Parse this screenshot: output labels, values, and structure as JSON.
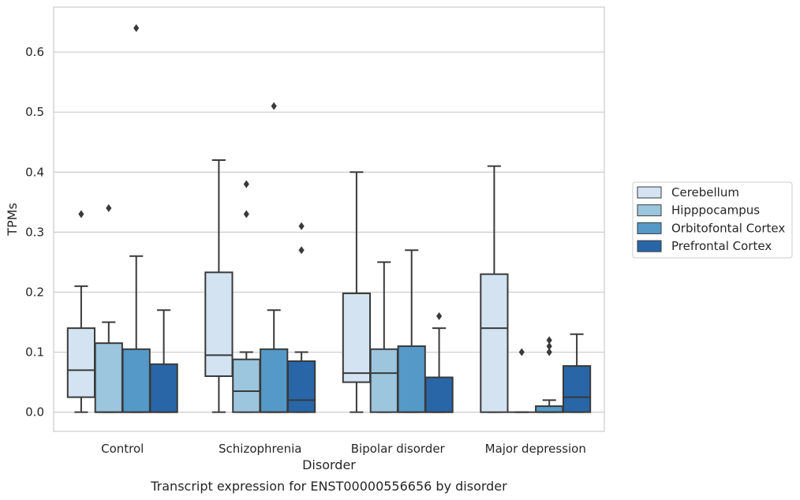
{
  "caption": "Transcript expression for ENST00000556656 by disorder",
  "colors": {
    "box_edge": "#3a3a3a",
    "grid": "#cccccc",
    "frame": "#cccccc",
    "series": [
      "#d3e3f2",
      "#9cc5de",
      "#5599c8",
      "#2866a8"
    ]
  },
  "chart_data": {
    "type": "box",
    "title": "",
    "xlabel": "Disorder",
    "ylabel": "TPMs",
    "ylim": [
      -0.032,
      0.675
    ],
    "yticks": [
      0.0,
      0.1,
      0.2,
      0.3,
      0.4,
      0.5,
      0.6
    ],
    "ytick_labels": [
      "0.0",
      "0.1",
      "0.2",
      "0.3",
      "0.4",
      "0.5",
      "0.6"
    ],
    "grid": "horizontal",
    "legend_position": "right",
    "categories": [
      "Control",
      "Schizophrenia",
      "Bipolar disorder",
      "Major depression"
    ],
    "series": [
      {
        "name": "Cerebellum",
        "boxes": [
          {
            "whisker_low": 0.0,
            "q1": 0.025,
            "median": 0.07,
            "q3": 0.14,
            "whisker_high": 0.21,
            "outliers": [
              0.33
            ]
          },
          {
            "whisker_low": 0.0,
            "q1": 0.06,
            "median": 0.095,
            "q3": 0.233,
            "whisker_high": 0.42,
            "outliers": []
          },
          {
            "whisker_low": 0.0,
            "q1": 0.05,
            "median": 0.065,
            "q3": 0.198,
            "whisker_high": 0.4,
            "outliers": []
          },
          {
            "whisker_low": 0.0,
            "q1": 0.0,
            "median": 0.14,
            "q3": 0.23,
            "whisker_high": 0.41,
            "outliers": []
          }
        ]
      },
      {
        "name": "Hipppocampus",
        "boxes": [
          {
            "whisker_low": 0.0,
            "q1": 0.0,
            "median": 0.0,
            "q3": 0.115,
            "whisker_high": 0.15,
            "outliers": [
              0.34
            ]
          },
          {
            "whisker_low": 0.0,
            "q1": 0.0,
            "median": 0.035,
            "q3": 0.088,
            "whisker_high": 0.1,
            "outliers": [
              0.38,
              0.33
            ]
          },
          {
            "whisker_low": 0.0,
            "q1": 0.0,
            "median": 0.065,
            "q3": 0.105,
            "whisker_high": 0.25,
            "outliers": []
          },
          {
            "whisker_low": 0.0,
            "q1": 0.0,
            "median": 0.0,
            "q3": 0.0,
            "whisker_high": 0.0,
            "outliers": [
              0.1
            ]
          }
        ]
      },
      {
        "name": "Orbitofontal Cortex",
        "boxes": [
          {
            "whisker_low": 0.0,
            "q1": 0.0,
            "median": 0.0,
            "q3": 0.105,
            "whisker_high": 0.26,
            "outliers": [
              0.64
            ]
          },
          {
            "whisker_low": 0.0,
            "q1": 0.0,
            "median": 0.0,
            "q3": 0.105,
            "whisker_high": 0.17,
            "outliers": [
              0.51
            ]
          },
          {
            "whisker_low": 0.0,
            "q1": 0.0,
            "median": 0.0,
            "q3": 0.11,
            "whisker_high": 0.27,
            "outliers": []
          },
          {
            "whisker_low": 0.0,
            "q1": 0.0,
            "median": 0.0,
            "q3": 0.01,
            "whisker_high": 0.02,
            "outliers": [
              0.1,
              0.11,
              0.12
            ]
          }
        ]
      },
      {
        "name": "Prefrontal Cortex",
        "boxes": [
          {
            "whisker_low": 0.0,
            "q1": 0.0,
            "median": 0.0,
            "q3": 0.08,
            "whisker_high": 0.17,
            "outliers": []
          },
          {
            "whisker_low": 0.0,
            "q1": 0.0,
            "median": 0.02,
            "q3": 0.085,
            "whisker_high": 0.1,
            "outliers": [
              0.31,
              0.27
            ]
          },
          {
            "whisker_low": 0.0,
            "q1": 0.0,
            "median": 0.0,
            "q3": 0.058,
            "whisker_high": 0.14,
            "outliers": [
              0.16
            ]
          },
          {
            "whisker_low": 0.0,
            "q1": 0.0,
            "median": 0.025,
            "q3": 0.077,
            "whisker_high": 0.13,
            "outliers": []
          }
        ]
      }
    ]
  }
}
